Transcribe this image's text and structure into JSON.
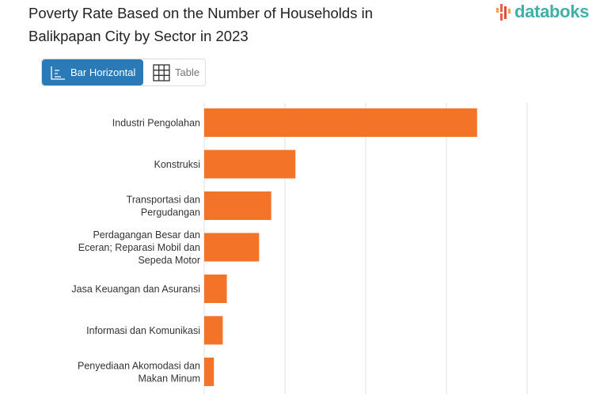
{
  "title_lines": [
    "Poverty Rate Based on the Number of Households in",
    "Balikpapan City by Sector in 2023"
  ],
  "logo": "databoks",
  "toggle": {
    "bar_label": "Bar Horizontal",
    "table_label": "Table",
    "active": "Bar Horizontal"
  },
  "colors": {
    "bar": "#f37329",
    "active_button": "#2a7ab8",
    "logo": "#3fb0a8"
  },
  "icons": {
    "bar": "bar-chart-icon",
    "table": "table-grid-icon"
  },
  "chart_data": {
    "type": "bar",
    "orientation": "horizontal",
    "title": "Poverty Rate Based on the Number of Households in Balikpapan City by Sector in 2023",
    "categories": [
      [
        "Industri Pengolahan"
      ],
      [
        "Konstruksi"
      ],
      [
        "Transportasi dan",
        "Pergudangan"
      ],
      [
        "Perdagangan Besar dan",
        "Eceran; Reparasi Mobil dan",
        "Sepeda Motor"
      ],
      [
        "Jasa Keuangan dan Asuransi"
      ],
      [
        "Informasi dan Komunikasi"
      ],
      [
        "Penyediaan Akomodasi dan",
        "Makan Minum"
      ]
    ],
    "values": [
      3.38,
      1.13,
      0.83,
      0.68,
      0.28,
      0.23,
      0.12
    ],
    "xlim": [
      0,
      4
    ],
    "xticks": [
      0,
      1,
      2,
      3,
      4
    ],
    "tick_labels_shown": false,
    "grid": true,
    "xlabel": "",
    "ylabel": ""
  }
}
